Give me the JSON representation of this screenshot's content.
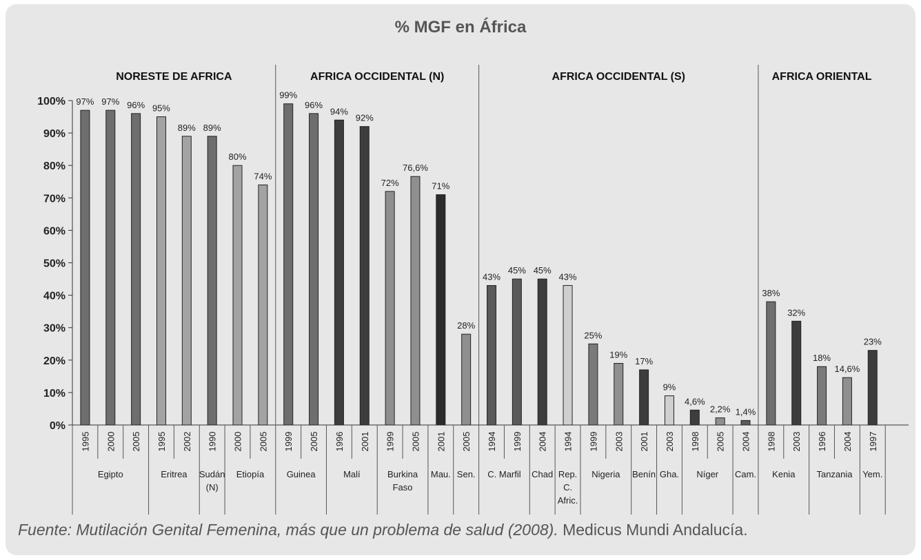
{
  "chart_data": {
    "type": "bar",
    "title": "% MGF en África",
    "ylim": [
      0,
      100
    ],
    "yticks": [
      "0%",
      "10%",
      "20%",
      "30%",
      "40%",
      "50%",
      "60%",
      "70%",
      "80%",
      "90%",
      "100%"
    ],
    "grid": false,
    "legend": "none",
    "regions": [
      {
        "name": "NORESTE DE AFRICA",
        "start": 0,
        "end": 8
      },
      {
        "name": "AFRICA OCCIDENTAL (N)",
        "start": 8,
        "end": 16
      },
      {
        "name": "AFRICA OCCIDENTAL (S)",
        "start": 16,
        "end": 27
      },
      {
        "name": "AFRICA ORIENTAL",
        "start": 27,
        "end": 32
      }
    ],
    "countries": [
      {
        "name": "Egipto",
        "start": 0,
        "end": 3
      },
      {
        "name": "Eritrea",
        "start": 3,
        "end": 5
      },
      {
        "name": "Sudán (N)",
        "start": 5,
        "end": 6
      },
      {
        "name": "Etiopía",
        "start": 6,
        "end": 8
      },
      {
        "name": "Guinea",
        "start": 8,
        "end": 10
      },
      {
        "name": "Malí",
        "start": 10,
        "end": 12
      },
      {
        "name": "Burkina Faso",
        "start": 12,
        "end": 14
      },
      {
        "name": "Mau.",
        "start": 14,
        "end": 15
      },
      {
        "name": "Sen.",
        "start": 15,
        "end": 16
      },
      {
        "name": "C. Marfil",
        "start": 16,
        "end": 18
      },
      {
        "name": "Chad",
        "start": 18,
        "end": 19
      },
      {
        "name": "Rep. C. Afric.",
        "start": 19,
        "end": 20
      },
      {
        "name": "Nigeria",
        "start": 20,
        "end": 22
      },
      {
        "name": "Benín",
        "start": 22,
        "end": 23
      },
      {
        "name": "Gha.",
        "start": 23,
        "end": 24
      },
      {
        "name": "Níger",
        "start": 24,
        "end": 26
      },
      {
        "name": "Cam.",
        "start": 26,
        "end": 27
      },
      {
        "name": "Kenia",
        "start": 27,
        "end": 29
      },
      {
        "name": "Tanzania",
        "start": 29,
        "end": 31
      },
      {
        "name": "Yem.",
        "start": 31,
        "end": 32
      }
    ],
    "bars": [
      {
        "year": "1995",
        "value": 97,
        "label": "97%",
        "color": "#6e6e6e"
      },
      {
        "year": "2000",
        "value": 97,
        "label": "97%",
        "color": "#6e6e6e"
      },
      {
        "year": "2005",
        "value": 96,
        "label": "96%",
        "color": "#6e6e6e"
      },
      {
        "year": "1995",
        "value": 95,
        "label": "95%",
        "color": "#a3a3a3"
      },
      {
        "year": "2002",
        "value": 89,
        "label": "89%",
        "color": "#a3a3a3"
      },
      {
        "year": "1990",
        "value": 89,
        "label": "89%",
        "color": "#6e6e6e"
      },
      {
        "year": "2000",
        "value": 80,
        "label": "80%",
        "color": "#a3a3a3"
      },
      {
        "year": "2005",
        "value": 74,
        "label": "74%",
        "color": "#a3a3a3"
      },
      {
        "year": "1999",
        "value": 99,
        "label": "99%",
        "color": "#6e6e6e"
      },
      {
        "year": "2005",
        "value": 96,
        "label": "96%",
        "color": "#6e6e6e"
      },
      {
        "year": "1996",
        "value": 94,
        "label": "94%",
        "color": "#3d3d3d"
      },
      {
        "year": "2001",
        "value": 92,
        "label": "92%",
        "color": "#3d3d3d"
      },
      {
        "year": "1999",
        "value": 72,
        "label": "72%",
        "color": "#8f8f8f"
      },
      {
        "year": "2005",
        "value": 76.6,
        "label": "76,6%",
        "color": "#8f8f8f"
      },
      {
        "year": "2001",
        "value": 71,
        "label": "71%",
        "color": "#2b2b2b"
      },
      {
        "year": "2005",
        "value": 28,
        "label": "28%",
        "color": "#8f8f8f"
      },
      {
        "year": "1994",
        "value": 43,
        "label": "43%",
        "color": "#5a5a5a"
      },
      {
        "year": "1999",
        "value": 45,
        "label": "45%",
        "color": "#5a5a5a"
      },
      {
        "year": "2004",
        "value": 45,
        "label": "45%",
        "color": "#3d3d3d"
      },
      {
        "year": "1994",
        "value": 43,
        "label": "43%",
        "color": "#cfcfcf"
      },
      {
        "year": "1999",
        "value": 25,
        "label": "25%",
        "color": "#7a7a7a"
      },
      {
        "year": "2003",
        "value": 19,
        "label": "19%",
        "color": "#8f8f8f"
      },
      {
        "year": "2001",
        "value": 17,
        "label": "17%",
        "color": "#3d3d3d"
      },
      {
        "year": "2003",
        "value": 9,
        "label": "9%",
        "color": "#cfcfcf"
      },
      {
        "year": "1998",
        "value": 4.6,
        "label": "4,6%",
        "color": "#3d3d3d"
      },
      {
        "year": "2005",
        "value": 2.2,
        "label": "2,2%",
        "color": "#8f8f8f"
      },
      {
        "year": "2004",
        "value": 1.4,
        "label": "1,4%",
        "color": "#5a5a5a"
      },
      {
        "year": "1998",
        "value": 38,
        "label": "38%",
        "color": "#6e6e6e"
      },
      {
        "year": "2003",
        "value": 32,
        "label": "32%",
        "color": "#3d3d3d"
      },
      {
        "year": "1996",
        "value": 18,
        "label": "18%",
        "color": "#7a7a7a"
      },
      {
        "year": "2004",
        "value": 14.6,
        "label": "14,6%",
        "color": "#8f8f8f"
      },
      {
        "year": "1997",
        "value": 23,
        "label": "23%",
        "color": "#3d3d3d"
      }
    ]
  },
  "source": {
    "italic": "Fuente: Mutilación Genital Femenina, más que un problema de salud (2008).",
    "plain": " Medicus Mundi Andalucía."
  }
}
